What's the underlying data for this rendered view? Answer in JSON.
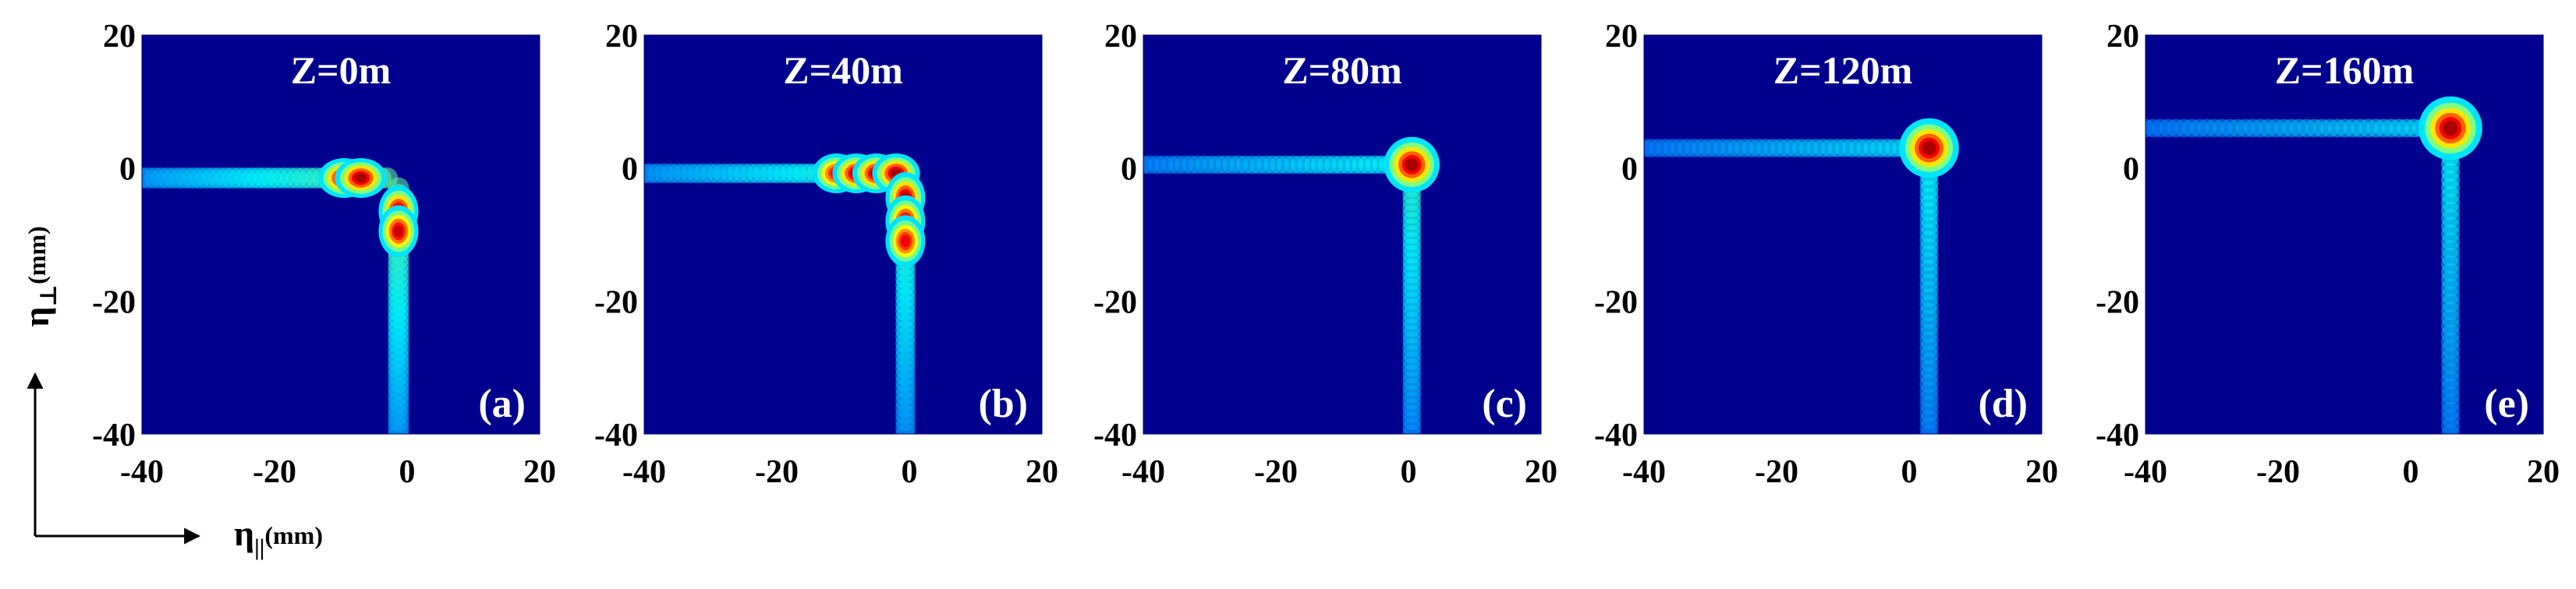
{
  "chart_data": [
    {
      "type": "heatmap",
      "panel_label": "(a)",
      "title": "Z=0m",
      "x_range": [
        -40,
        20
      ],
      "y_range": [
        -40,
        20
      ],
      "x_ticks": [
        "-40",
        "-20",
        "0",
        "20"
      ],
      "y_ticks": [
        "20",
        "0",
        "-20",
        "-40"
      ],
      "colormap": "jet",
      "intensity_features": [
        {
          "shape": "peak",
          "x": -9.5,
          "y": -1.5,
          "sx": 1.3,
          "sy": 1.0,
          "amp": 1.0
        },
        {
          "shape": "peak",
          "x": -7.0,
          "y": -1.5,
          "sx": 1.3,
          "sy": 1.0,
          "amp": 1.0
        },
        {
          "shape": "peak",
          "x": -1.3,
          "y": -6.5,
          "sx": 1.0,
          "sy": 1.3,
          "amp": 1.0
        },
        {
          "shape": "peak",
          "x": -1.3,
          "y": -9.5,
          "sx": 1.0,
          "sy": 1.3,
          "amp": 0.95
        },
        {
          "shape": "streak",
          "axis": "x",
          "from": -40,
          "to": -3,
          "at": -1.5,
          "width": 1.6,
          "amp": 0.45
        },
        {
          "shape": "streak",
          "axis": "y",
          "from": -40,
          "to": -3,
          "at": -1.3,
          "width": 1.6,
          "amp": 0.45
        }
      ]
    },
    {
      "type": "heatmap",
      "panel_label": "(b)",
      "title": "Z=40m",
      "x_range": [
        -40,
        20
      ],
      "y_range": [
        -40,
        20
      ],
      "x_ticks": [
        "-40",
        "-20",
        "0",
        "20"
      ],
      "y_ticks": [
        "20",
        "0",
        "-20",
        "-40"
      ],
      "colormap": "jet",
      "intensity_features": [
        {
          "shape": "peak",
          "x": -11.0,
          "y": -0.8,
          "sx": 1.2,
          "sy": 1.0,
          "amp": 0.9
        },
        {
          "shape": "peak",
          "x": -8.0,
          "y": -0.8,
          "sx": 1.2,
          "sy": 1.0,
          "amp": 1.0
        },
        {
          "shape": "peak",
          "x": -5.0,
          "y": -0.8,
          "sx": 1.2,
          "sy": 1.0,
          "amp": 1.0
        },
        {
          "shape": "peak",
          "x": -2.0,
          "y": -0.8,
          "sx": 1.2,
          "sy": 1.0,
          "amp": 1.0
        },
        {
          "shape": "peak",
          "x": -0.6,
          "y": -4.5,
          "sx": 1.0,
          "sy": 1.3,
          "amp": 1.0
        },
        {
          "shape": "peak",
          "x": -0.6,
          "y": -8.0,
          "sx": 1.0,
          "sy": 1.3,
          "amp": 0.95
        },
        {
          "shape": "peak",
          "x": -0.6,
          "y": -11.0,
          "sx": 1.0,
          "sy": 1.3,
          "amp": 0.9
        },
        {
          "shape": "streak",
          "axis": "x",
          "from": -40,
          "to": -2,
          "at": -0.8,
          "width": 1.5,
          "amp": 0.4
        },
        {
          "shape": "streak",
          "axis": "y",
          "from": -40,
          "to": -3,
          "at": -0.6,
          "width": 1.5,
          "amp": 0.4
        }
      ]
    },
    {
      "type": "heatmap",
      "panel_label": "(c)",
      "title": "Z=80m",
      "x_range": [
        -40,
        20
      ],
      "y_range": [
        -40,
        20
      ],
      "x_ticks": [
        "-40",
        "-20",
        "0",
        "20"
      ],
      "y_ticks": [
        "20",
        "0",
        "-20",
        "-40"
      ],
      "colormap": "jet",
      "intensity_features": [
        {
          "shape": "peak",
          "x": 0.5,
          "y": 0.5,
          "sx": 1.4,
          "sy": 1.4,
          "amp": 1.0
        },
        {
          "shape": "streak",
          "axis": "x",
          "from": -40,
          "to": -1,
          "at": 0.5,
          "width": 1.4,
          "amp": 0.3
        },
        {
          "shape": "streak",
          "axis": "y",
          "from": -40,
          "to": -2,
          "at": 0.5,
          "width": 1.4,
          "amp": 0.35
        }
      ]
    },
    {
      "type": "heatmap",
      "panel_label": "(d)",
      "title": "Z=120m",
      "x_range": [
        -40,
        20
      ],
      "y_range": [
        -40,
        20
      ],
      "x_ticks": [
        "-40",
        "-20",
        "0",
        "20"
      ],
      "y_ticks": [
        "20",
        "0",
        "-20",
        "-40"
      ],
      "colormap": "jet",
      "intensity_features": [
        {
          "shape": "peak",
          "x": 3.0,
          "y": 3.0,
          "sx": 1.5,
          "sy": 1.5,
          "amp": 1.0
        },
        {
          "shape": "streak",
          "axis": "x",
          "from": -40,
          "to": 1,
          "at": 3.0,
          "width": 1.4,
          "amp": 0.25
        },
        {
          "shape": "streak",
          "axis": "y",
          "from": -40,
          "to": 1,
          "at": 3.0,
          "width": 1.4,
          "amp": 0.3
        }
      ]
    },
    {
      "type": "heatmap",
      "panel_label": "(e)",
      "title": "Z=160m",
      "x_range": [
        -40,
        20
      ],
      "y_range": [
        -40,
        20
      ],
      "x_ticks": [
        "-40",
        "-20",
        "0",
        "20"
      ],
      "y_ticks": [
        "20",
        "0",
        "-20",
        "-40"
      ],
      "colormap": "jet",
      "intensity_features": [
        {
          "shape": "peak",
          "x": 6.0,
          "y": 6.0,
          "sx": 1.6,
          "sy": 1.6,
          "amp": 1.0
        },
        {
          "shape": "streak",
          "axis": "x",
          "from": -40,
          "to": 4,
          "at": 6.0,
          "width": 1.4,
          "amp": 0.25
        },
        {
          "shape": "streak",
          "axis": "y",
          "from": -40,
          "to": 4,
          "at": 6.0,
          "width": 1.4,
          "amp": 0.3
        }
      ]
    }
  ],
  "axes": {
    "xlabel_symbol": "η",
    "xlabel_subscript": "||",
    "xlabel_unit": "(mm)",
    "ylabel_symbol": "η",
    "ylabel_subscript": "⊥",
    "ylabel_unit": "(mm)"
  },
  "colors": {
    "background": "#00008f",
    "peak": "#8b0000",
    "text_on_plot": "#ffffff",
    "text": "#000000"
  }
}
